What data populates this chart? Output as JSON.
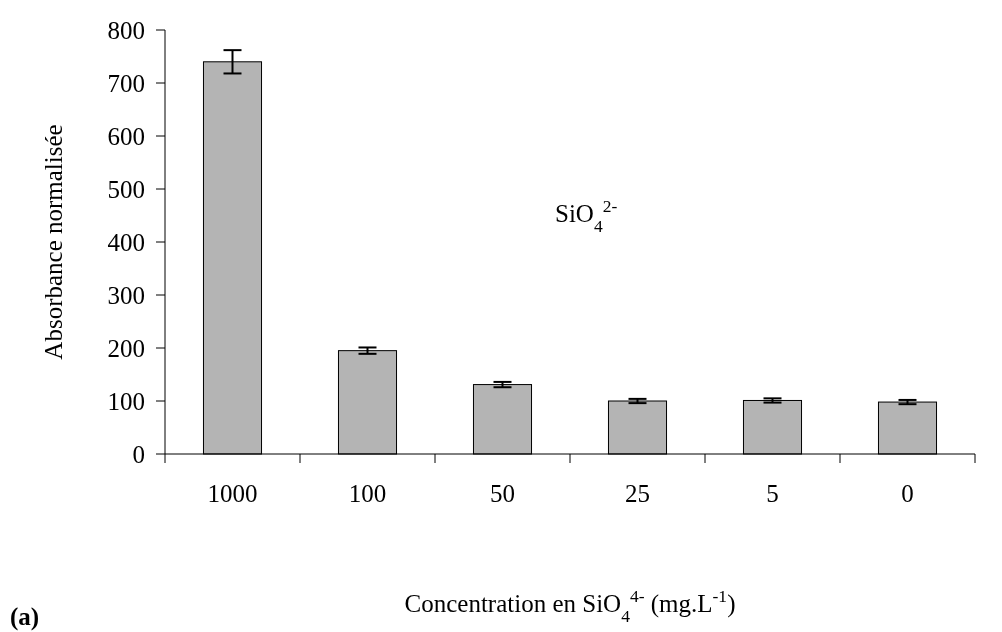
{
  "chart_data": {
    "type": "bar",
    "categories": [
      "1000",
      "100",
      "50",
      "25",
      "5",
      "0"
    ],
    "values": [
      740,
      195,
      131,
      100,
      101,
      98
    ],
    "errors": [
      22,
      6,
      5,
      4,
      4,
      4
    ],
    "color": "#b4b4b4",
    "ylabel": "Absorbance normalisée",
    "xlabel": "Concentration en SiO$_{4}$$^{4-}$ (mg.L$^{-1}$)",
    "annotations": [
      "SiO$_{4}$$^{2-}$",
      "(a)"
    ],
    "ylim": [
      0,
      800
    ],
    "yticks": [
      0,
      100,
      200,
      300,
      400,
      500,
      600,
      700,
      800
    ],
    "grid": false
  }
}
